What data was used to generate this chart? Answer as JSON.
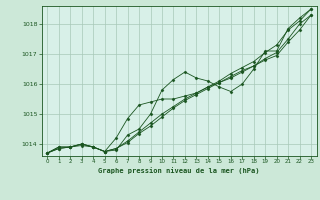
{
  "background_color": "#cce8d8",
  "plot_bg_color": "#d8f0e8",
  "grid_color": "#a8c8b8",
  "line_color": "#1a5520",
  "marker_color": "#1a5520",
  "title": "Graphe pression niveau de la mer (hPa)",
  "ylim": [
    1013.6,
    1018.6
  ],
  "xlim": [
    -0.5,
    23.5
  ],
  "yticks": [
    1014,
    1015,
    1016,
    1017,
    1018
  ],
  "xticks": [
    0,
    1,
    2,
    3,
    4,
    5,
    6,
    7,
    8,
    9,
    10,
    11,
    12,
    13,
    14,
    15,
    16,
    17,
    18,
    19,
    20,
    21,
    22,
    23
  ],
  "series": [
    [
      1013.7,
      1013.9,
      1013.9,
      1014.0,
      1013.9,
      1013.75,
      1013.8,
      1014.3,
      1014.5,
      1015.0,
      1015.8,
      1016.15,
      1016.4,
      1016.2,
      1016.1,
      1015.9,
      1015.75,
      1016.0,
      1016.5,
      1017.1,
      1017.1,
      1017.85,
      1018.2,
      1018.5
    ],
    [
      1013.7,
      1013.9,
      1013.9,
      1014.0,
      1013.9,
      1013.75,
      1014.2,
      1014.85,
      1015.3,
      1015.4,
      1015.5,
      1015.5,
      1015.6,
      1015.7,
      1015.9,
      1016.1,
      1016.35,
      1016.55,
      1016.75,
      1017.05,
      1017.3,
      1017.8,
      1018.1,
      1018.5
    ],
    [
      1013.7,
      1013.85,
      1013.9,
      1013.95,
      1013.9,
      1013.75,
      1013.85,
      1014.05,
      1014.35,
      1014.6,
      1014.9,
      1015.2,
      1015.45,
      1015.65,
      1015.85,
      1016.05,
      1016.25,
      1016.45,
      1016.6,
      1016.8,
      1016.95,
      1017.4,
      1017.8,
      1018.3
    ],
    [
      1013.7,
      1013.85,
      1013.9,
      1014.0,
      1013.9,
      1013.75,
      1013.85,
      1014.1,
      1014.4,
      1014.7,
      1015.0,
      1015.25,
      1015.5,
      1015.7,
      1015.9,
      1016.05,
      1016.2,
      1016.4,
      1016.6,
      1016.85,
      1017.05,
      1017.5,
      1018.0,
      1018.3
    ]
  ]
}
